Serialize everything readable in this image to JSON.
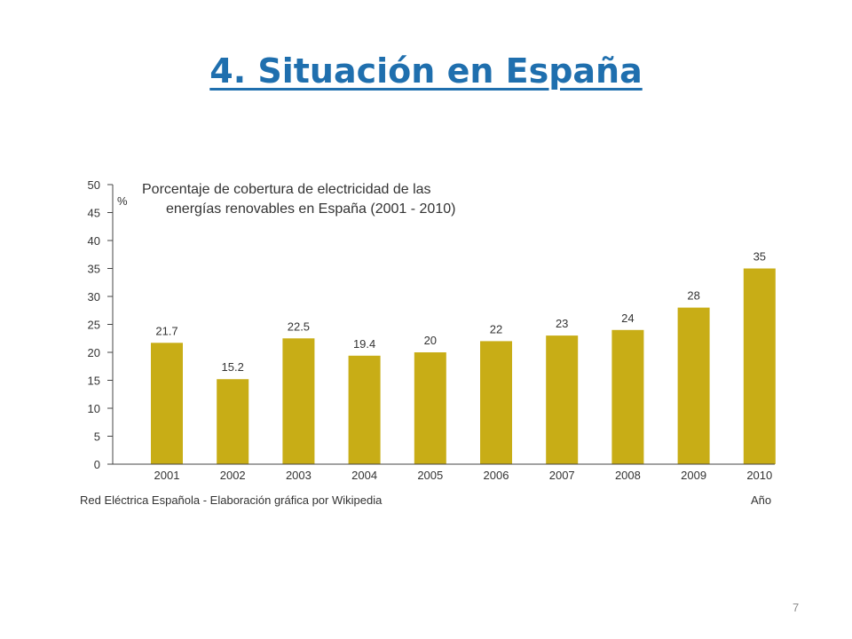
{
  "slide": {
    "title": "4. Situación en España",
    "page_number": "7"
  },
  "colors": {
    "title": "#1f6fae",
    "bar": "#c8ad16",
    "axis": "#444444",
    "text": "#333333"
  },
  "chart_data": {
    "type": "bar",
    "title_line1": "Porcentaje de cobertura de electricidad de las",
    "title_line2": "energías renovables en España (2001 - 2010)",
    "ylabel": "%",
    "xlabel": "Año",
    "source": "Red Eléctrica Española - Elaboración gráfica por Wikipedia",
    "categories": [
      "2001",
      "2002",
      "2003",
      "2004",
      "2005",
      "2006",
      "2007",
      "2008",
      "2009",
      "2010"
    ],
    "values": [
      21.7,
      15.2,
      22.5,
      19.4,
      20,
      22,
      23,
      24,
      28,
      35
    ],
    "value_labels": [
      "21.7",
      "15.2",
      "22.5",
      "19.4",
      "20",
      "22",
      "23",
      "24",
      "28",
      "35"
    ],
    "ylim": [
      0,
      50
    ],
    "yticks": [
      0,
      5,
      10,
      15,
      20,
      25,
      30,
      35,
      40,
      45,
      50
    ],
    "grid": false,
    "legend": "none"
  }
}
